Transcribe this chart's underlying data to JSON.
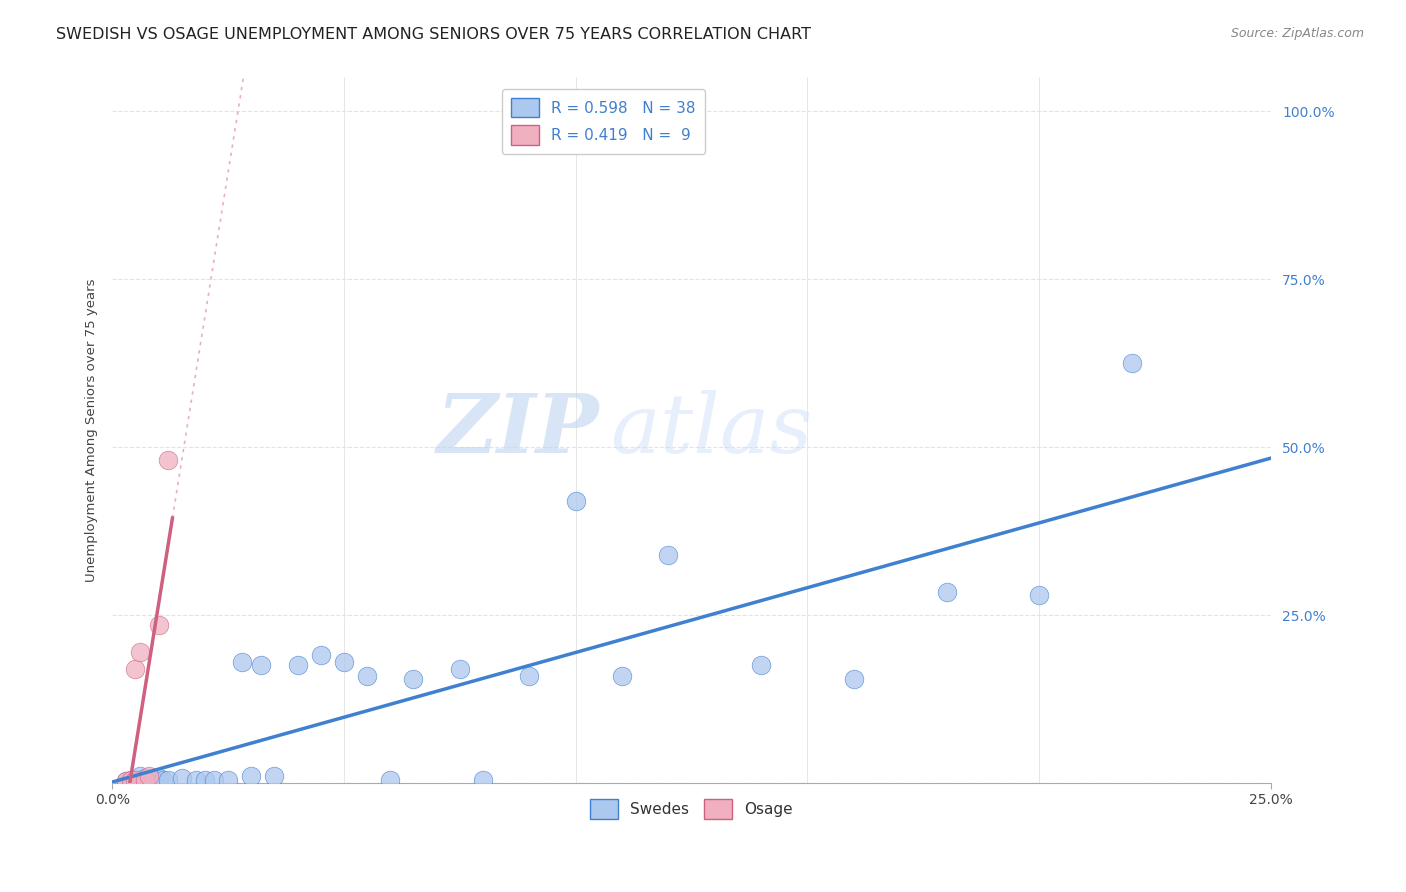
{
  "title": "SWEDISH VS OSAGE UNEMPLOYMENT AMONG SENIORS OVER 75 YEARS CORRELATION CHART",
  "source": "Source: ZipAtlas.com",
  "ylabel": "Unemployment Among Seniors over 75 years",
  "xlim": [
    0,
    0.25
  ],
  "ylim": [
    0,
    1.05
  ],
  "xticks": [
    0.0,
    0.25
  ],
  "yticks": [
    0.0,
    0.25,
    0.5,
    0.75,
    1.0
  ],
  "xticklabels": [
    "0.0%",
    "25.0%"
  ],
  "yticklabels": [
    "",
    "25.0%",
    "50.0%",
    "75.0%",
    "100.0%"
  ],
  "swedes_x": [
    0.003,
    0.004,
    0.005,
    0.006,
    0.006,
    0.007,
    0.007,
    0.008,
    0.009,
    0.01,
    0.011,
    0.012,
    0.015,
    0.018,
    0.02,
    0.022,
    0.025,
    0.028,
    0.03,
    0.032,
    0.035,
    0.04,
    0.045,
    0.05,
    0.055,
    0.06,
    0.065,
    0.075,
    0.08,
    0.09,
    0.1,
    0.11,
    0.12,
    0.14,
    0.16,
    0.18,
    0.2,
    0.22
  ],
  "swedes_y": [
    0.003,
    0.005,
    0.005,
    0.005,
    0.01,
    0.005,
    0.008,
    0.005,
    0.005,
    0.008,
    0.005,
    0.005,
    0.008,
    0.005,
    0.005,
    0.005,
    0.005,
    0.18,
    0.01,
    0.175,
    0.01,
    0.175,
    0.19,
    0.18,
    0.16,
    0.005,
    0.155,
    0.17,
    0.005,
    0.16,
    0.42,
    0.16,
    0.34,
    0.175,
    0.155,
    0.285,
    0.28,
    0.625
  ],
  "osage_x": [
    0.003,
    0.004,
    0.005,
    0.005,
    0.006,
    0.007,
    0.008,
    0.01,
    0.012
  ],
  "osage_y": [
    0.003,
    0.005,
    0.17,
    0.005,
    0.195,
    0.005,
    0.01,
    0.235,
    0.48
  ],
  "swedes_R": 0.598,
  "swedes_N": 38,
  "osage_R": 0.419,
  "osage_N": 9,
  "swedes_color": "#adc8ef",
  "osage_color": "#f0b0c0",
  "swedes_line_color": "#4080d0",
  "osage_line_color": "#d06080",
  "legend_swedes_label": "Swedes",
  "legend_osage_label": "Osage",
  "watermark_zip": "ZIP",
  "watermark_atlas": "atlas",
  "title_fontsize": 11.5,
  "axis_label_fontsize": 9.5,
  "tick_fontsize": 10,
  "legend_fontsize": 11,
  "source_fontsize": 9,
  "marker_size": 180,
  "background_color": "#ffffff",
  "grid_color": "#dde4f0"
}
